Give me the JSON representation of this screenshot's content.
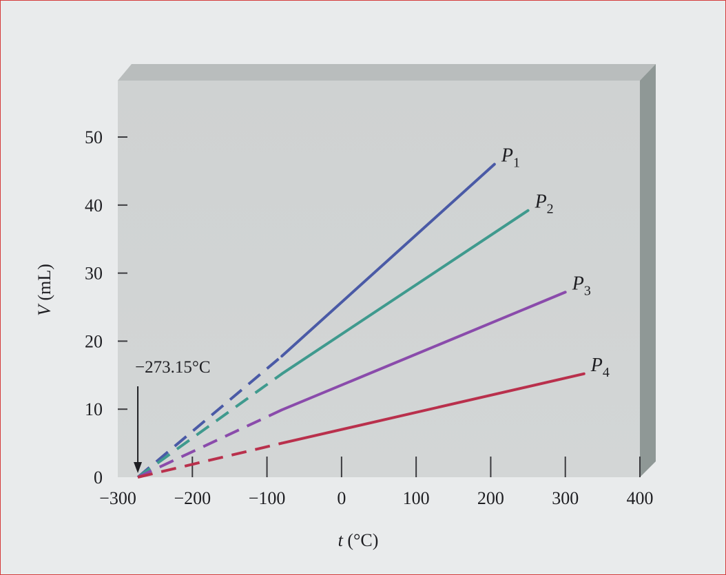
{
  "chart_data": {
    "type": "line",
    "title": "",
    "xlabel_var": "t",
    "xlabel_unit": " (°C)",
    "ylabel_var": "V",
    "ylabel_unit": " (mL)",
    "xlim": [
      -300,
      400
    ],
    "ylim": [
      0,
      50
    ],
    "x_ticks": [
      -300,
      -200,
      -100,
      0,
      100,
      200,
      300,
      400
    ],
    "x_tick_labels": [
      "−300",
      "−200",
      "−100",
      "0",
      "100",
      "200",
      "300",
      "400"
    ],
    "y_ticks": [
      0,
      10,
      20,
      30,
      40,
      50
    ],
    "y_tick_labels": [
      "0",
      "10",
      "20",
      "30",
      "40",
      "50"
    ],
    "grid": false,
    "series": [
      {
        "name": "P",
        "subscript": "1",
        "color": "#4a5aa6",
        "extrapolated": [
          [
            -273.15,
            0
          ],
          [
            -80,
            17.8
          ]
        ],
        "measured": [
          [
            -80,
            17.8
          ],
          [
            205,
            46.0
          ]
        ]
      },
      {
        "name": "P",
        "subscript": "2",
        "color": "#3f9a8e",
        "extrapolated": [
          [
            -273.15,
            0
          ],
          [
            -80,
            15.2
          ]
        ],
        "measured": [
          [
            -80,
            15.2
          ],
          [
            250,
            39.2
          ]
        ]
      },
      {
        "name": "P",
        "subscript": "3",
        "color": "#8a4bab",
        "extrapolated": [
          [
            -273.15,
            0
          ],
          [
            -80,
            9.9
          ]
        ],
        "measured": [
          [
            -80,
            9.9
          ],
          [
            300,
            27.2
          ]
        ]
      },
      {
        "name": "P",
        "subscript": "4",
        "color": "#b9304c",
        "extrapolated": [
          [
            -273.15,
            0
          ],
          [
            -80,
            5.0
          ]
        ],
        "measured": [
          [
            -80,
            5.0
          ],
          [
            325,
            15.2
          ]
        ]
      }
    ],
    "annotation": {
      "text": "−273.15°C",
      "x": -273.15,
      "y": 0
    }
  }
}
